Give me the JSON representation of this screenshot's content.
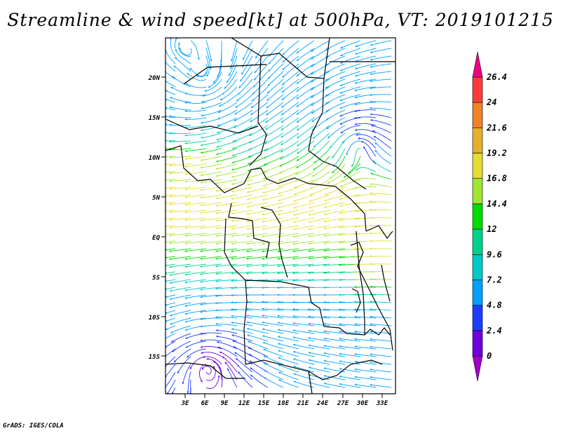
{
  "title": "Streamline & wind speed[kt] at 500hPa, VT: 2019101215",
  "credit": "GrADS: IGES/COLA",
  "map": {
    "lat_ticks": [
      "20N",
      "15N",
      "10N",
      "5N",
      "EQ",
      "5S",
      "10S",
      "15S"
    ],
    "lon_ticks": [
      "3E",
      "6E",
      "9E",
      "12E",
      "15E",
      "18E",
      "21E",
      "24E",
      "27E",
      "30E",
      "33E"
    ]
  },
  "colorbar": {
    "labels": [
      "26.4",
      "24",
      "21.6",
      "19.2",
      "16.8",
      "14.4",
      "12",
      "9.6",
      "7.2",
      "4.8",
      "2.4",
      "0"
    ],
    "colors": [
      "#a000c8",
      "#6e00dc",
      "#1e3cff",
      "#00a0ff",
      "#00c8c8",
      "#00d28c",
      "#00dc00",
      "#a0e632",
      "#e6dc32",
      "#e6af2d",
      "#f08228",
      "#fa3c3c",
      "#f00082"
    ]
  }
}
